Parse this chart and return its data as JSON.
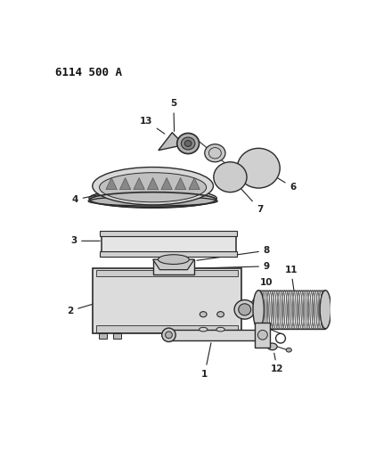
{
  "title": "6114 500 A",
  "bg_color": "#ffffff",
  "lc": "#222222",
  "fig_width": 4.12,
  "fig_height": 5.33,
  "dpi": 100,
  "ec": "#2a2a2a",
  "fc_light": "#e8e8e8",
  "fc_mid": "#d0d0d0",
  "fc_dark": "#b0b0b0"
}
